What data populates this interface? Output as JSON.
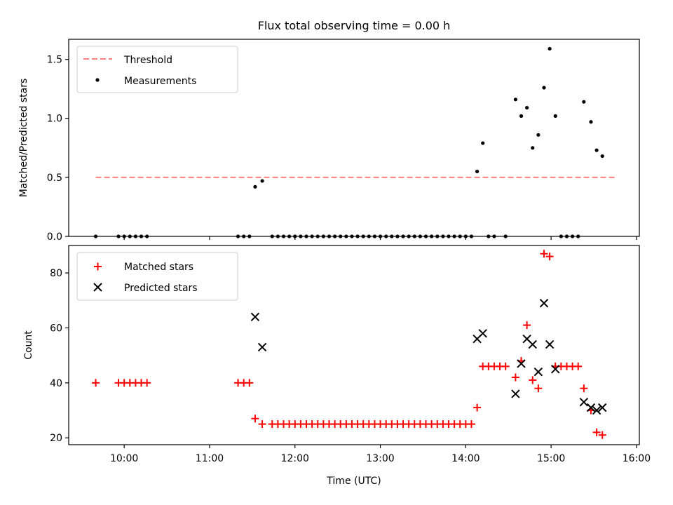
{
  "chart_data": [
    {
      "type": "scatter",
      "title": "Flux total observing time = 0.00 h",
      "xlabel": "",
      "ylabel": "Matched/Predicted stars",
      "x_format": "HH:MM",
      "xlim": [
        "09:21",
        "16:02"
      ],
      "ylim": [
        0,
        1.67
      ],
      "yticks": [
        0.0,
        0.5,
        1.0,
        1.5
      ],
      "ytick_labels": [
        "0.0",
        "0.5",
        "1.0",
        "1.5"
      ],
      "xticks": [
        "10:00",
        "11:00",
        "12:00",
        "13:00",
        "14:00",
        "15:00",
        "16:00"
      ],
      "legend": {
        "position": "upper-left",
        "entries": [
          "Threshold",
          "Measurements"
        ]
      },
      "threshold": {
        "name": "Threshold",
        "color": "#ff7f7f",
        "style": "dashed",
        "y": 0.5,
        "x_range": [
          "09:40",
          "15:45"
        ]
      },
      "series": [
        {
          "name": "Measurements",
          "marker": "dot",
          "color": "#000000",
          "points": [
            [
              "09:40",
              0.0
            ],
            [
              "09:56",
              0.0
            ],
            [
              "10:00",
              0.0
            ],
            [
              "10:04",
              0.0
            ],
            [
              "10:08",
              0.0
            ],
            [
              "10:12",
              0.0
            ],
            [
              "10:16",
              0.0
            ],
            [
              "11:20",
              0.0
            ],
            [
              "11:24",
              0.0
            ],
            [
              "11:28",
              0.0
            ],
            [
              "11:32",
              0.42
            ],
            [
              "11:37",
              0.47
            ],
            [
              "11:44",
              0.0
            ],
            [
              "11:48",
              0.0
            ],
            [
              "11:52",
              0.0
            ],
            [
              "11:56",
              0.0
            ],
            [
              "12:00",
              0.0
            ],
            [
              "12:04",
              0.0
            ],
            [
              "12:08",
              0.0
            ],
            [
              "12:12",
              0.0
            ],
            [
              "12:16",
              0.0
            ],
            [
              "12:20",
              0.0
            ],
            [
              "12:24",
              0.0
            ],
            [
              "12:28",
              0.0
            ],
            [
              "12:32",
              0.0
            ],
            [
              "12:36",
              0.0
            ],
            [
              "12:40",
              0.0
            ],
            [
              "12:44",
              0.0
            ],
            [
              "12:48",
              0.0
            ],
            [
              "12:52",
              0.0
            ],
            [
              "12:56",
              0.0
            ],
            [
              "13:00",
              0.0
            ],
            [
              "13:04",
              0.0
            ],
            [
              "13:08",
              0.0
            ],
            [
              "13:12",
              0.0
            ],
            [
              "13:16",
              0.0
            ],
            [
              "13:20",
              0.0
            ],
            [
              "13:24",
              0.0
            ],
            [
              "13:28",
              0.0
            ],
            [
              "13:32",
              0.0
            ],
            [
              "13:36",
              0.0
            ],
            [
              "13:40",
              0.0
            ],
            [
              "13:44",
              0.0
            ],
            [
              "13:48",
              0.0
            ],
            [
              "13:52",
              0.0
            ],
            [
              "13:56",
              0.0
            ],
            [
              "14:00",
              0.0
            ],
            [
              "14:04",
              0.0
            ],
            [
              "14:08",
              0.55
            ],
            [
              "14:12",
              0.79
            ],
            [
              "14:16",
              0.0
            ],
            [
              "14:20",
              0.0
            ],
            [
              "14:28",
              0.0
            ],
            [
              "14:35",
              1.16
            ],
            [
              "14:39",
              1.02
            ],
            [
              "14:43",
              1.09
            ],
            [
              "14:47",
              0.75
            ],
            [
              "14:51",
              0.86
            ],
            [
              "14:55",
              1.26
            ],
            [
              "14:59",
              1.59
            ],
            [
              "15:03",
              1.02
            ],
            [
              "15:07",
              0.0
            ],
            [
              "15:11",
              0.0
            ],
            [
              "15:15",
              0.0
            ],
            [
              "15:19",
              0.0
            ],
            [
              "15:23",
              1.14
            ],
            [
              "15:28",
              0.97
            ],
            [
              "15:32",
              0.73
            ],
            [
              "15:36",
              0.68
            ]
          ]
        }
      ]
    },
    {
      "type": "scatter",
      "title": "",
      "xlabel": "Time (UTC)",
      "ylabel": "Count",
      "x_format": "HH:MM",
      "xlim": [
        "09:21",
        "16:02"
      ],
      "ylim": [
        17.5,
        90
      ],
      "yticks": [
        20,
        40,
        60,
        80
      ],
      "ytick_labels": [
        "20",
        "40",
        "60",
        "80"
      ],
      "xticks": [
        "10:00",
        "11:00",
        "12:00",
        "13:00",
        "14:00",
        "15:00",
        "16:00"
      ],
      "xtick_labels": [
        "10:00",
        "11:00",
        "12:00",
        "13:00",
        "14:00",
        "15:00",
        "16:00"
      ],
      "legend": {
        "position": "upper-left",
        "entries": [
          "Matched stars",
          "Predicted stars"
        ]
      },
      "series": [
        {
          "name": "Matched stars",
          "marker": "plus",
          "color": "#ff0000",
          "points": [
            [
              "09:40",
              40
            ],
            [
              "09:56",
              40
            ],
            [
              "10:00",
              40
            ],
            [
              "10:04",
              40
            ],
            [
              "10:08",
              40
            ],
            [
              "10:12",
              40
            ],
            [
              "10:16",
              40
            ],
            [
              "11:20",
              40
            ],
            [
              "11:24",
              40
            ],
            [
              "11:28",
              40
            ],
            [
              "11:32",
              27
            ],
            [
              "11:37",
              25
            ],
            [
              "11:44",
              25
            ],
            [
              "11:48",
              25
            ],
            [
              "11:52",
              25
            ],
            [
              "11:56",
              25
            ],
            [
              "12:00",
              25
            ],
            [
              "12:04",
              25
            ],
            [
              "12:08",
              25
            ],
            [
              "12:12",
              25
            ],
            [
              "12:16",
              25
            ],
            [
              "12:20",
              25
            ],
            [
              "12:24",
              25
            ],
            [
              "12:28",
              25
            ],
            [
              "12:32",
              25
            ],
            [
              "12:36",
              25
            ],
            [
              "12:40",
              25
            ],
            [
              "12:44",
              25
            ],
            [
              "12:48",
              25
            ],
            [
              "12:52",
              25
            ],
            [
              "12:56",
              25
            ],
            [
              "13:00",
              25
            ],
            [
              "13:04",
              25
            ],
            [
              "13:08",
              25
            ],
            [
              "13:12",
              25
            ],
            [
              "13:16",
              25
            ],
            [
              "13:20",
              25
            ],
            [
              "13:24",
              25
            ],
            [
              "13:28",
              25
            ],
            [
              "13:32",
              25
            ],
            [
              "13:36",
              25
            ],
            [
              "13:40",
              25
            ],
            [
              "13:44",
              25
            ],
            [
              "13:48",
              25
            ],
            [
              "13:52",
              25
            ],
            [
              "13:56",
              25
            ],
            [
              "14:00",
              25
            ],
            [
              "14:04",
              25
            ],
            [
              "14:08",
              31
            ],
            [
              "14:12",
              46
            ],
            [
              "14:16",
              46
            ],
            [
              "14:20",
              46
            ],
            [
              "14:24",
              46
            ],
            [
              "14:28",
              46
            ],
            [
              "14:35",
              42
            ],
            [
              "14:39",
              48
            ],
            [
              "14:43",
              61
            ],
            [
              "14:47",
              41
            ],
            [
              "14:51",
              38
            ],
            [
              "14:55",
              87
            ],
            [
              "14:59",
              86
            ],
            [
              "15:03",
              46
            ],
            [
              "15:07",
              46
            ],
            [
              "15:11",
              46
            ],
            [
              "15:15",
              46
            ],
            [
              "15:19",
              46
            ],
            [
              "15:23",
              38
            ],
            [
              "15:28",
              30
            ],
            [
              "15:32",
              22
            ],
            [
              "15:36",
              21
            ]
          ]
        },
        {
          "name": "Predicted stars",
          "marker": "x",
          "color": "#000000",
          "points": [
            [
              "11:32",
              64
            ],
            [
              "11:37",
              53
            ],
            [
              "14:08",
              56
            ],
            [
              "14:12",
              58
            ],
            [
              "14:35",
              36
            ],
            [
              "14:39",
              47
            ],
            [
              "14:43",
              56
            ],
            [
              "14:47",
              54
            ],
            [
              "14:51",
              44
            ],
            [
              "14:55",
              69
            ],
            [
              "14:59",
              54
            ],
            [
              "15:03",
              45
            ],
            [
              "15:23",
              33
            ],
            [
              "15:28",
              31
            ],
            [
              "15:32",
              30
            ],
            [
              "15:36",
              31
            ]
          ]
        }
      ]
    }
  ]
}
